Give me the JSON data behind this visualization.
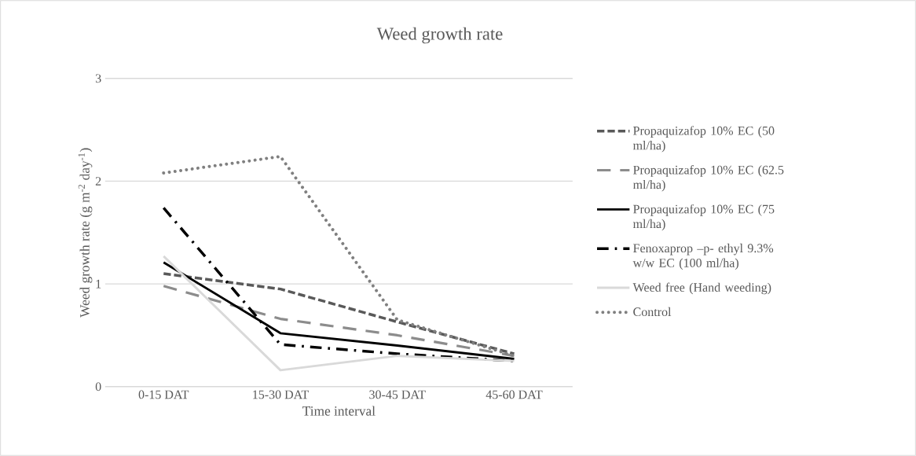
{
  "chart_data": {
    "type": "line",
    "title": "Weed growth rate",
    "xlabel": "Time interval",
    "ylabel": "Weed growth rate (g m$^{-2}$ day$^{-1}$)",
    "categories": [
      "0-15 DAT",
      "15-30 DAT",
      "30-45 DAT",
      "45-60 DAT"
    ],
    "ylim": [
      0,
      3
    ],
    "yticks": [
      0,
      1,
      2,
      3
    ],
    "grid": "y",
    "legend": "right",
    "marker": "none",
    "series": [
      {
        "name": "Propaquizafop 10% EC (50 ml/ha)",
        "color": "#595959",
        "line_style": "dashed",
        "values": [
          1.1,
          0.95,
          0.63,
          0.32
        ]
      },
      {
        "name": "Propaquizafop 10% EC (62.5 ml/ha)",
        "color": "#8c8c8c",
        "line_style": "long dashed",
        "values": [
          0.98,
          0.66,
          0.5,
          0.3
        ]
      },
      {
        "name": "Propaquizafop 10% EC (75 ml/ha)",
        "color": "#000000",
        "line_style": "solid",
        "values": [
          1.21,
          0.52,
          0.4,
          0.27
        ]
      },
      {
        "name": "Fenoxaprop –p- ethyl 9.3% w/w EC (100 ml/ha)",
        "color": "#000000",
        "line_style": "dash dot",
        "values": [
          1.74,
          0.41,
          0.32,
          0.25
        ]
      },
      {
        "name": "Weed free (Hand weeding)",
        "color": "#d9d9d9",
        "line_style": "solid",
        "values": [
          1.27,
          0.16,
          0.3,
          0.25
        ]
      },
      {
        "name": "Control",
        "color": "#808080",
        "line_style": "dotted",
        "values": [
          2.08,
          2.24,
          0.65,
          0.3
        ]
      }
    ]
  }
}
